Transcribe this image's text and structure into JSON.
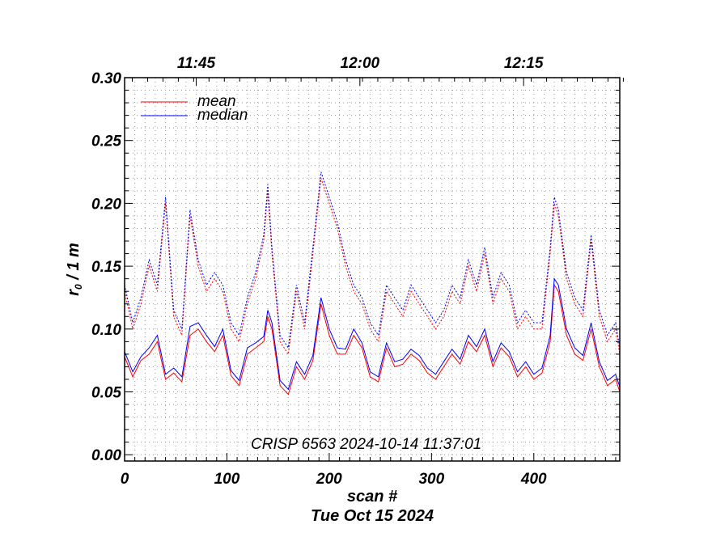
{
  "chart_data": {
    "type": "line",
    "title": "",
    "xlabel": "scan #",
    "ylabel_main": "r",
    "ylabel_sub": "0",
    "ylabel_rest": " / 1 m",
    "date_label": "Tue Oct 15 2024",
    "annotation": "CRISP 6563 2024-10-14 11:37:01",
    "xlim": [
      0,
      484
    ],
    "ylim": [
      -0.005,
      0.3
    ],
    "x_ticks": [
      0,
      100,
      200,
      300,
      400
    ],
    "x_tick_labels": [
      "0",
      "100",
      "200",
      "300",
      "400"
    ],
    "y_ticks": [
      0.0,
      0.05,
      0.1,
      0.15,
      0.2,
      0.25,
      0.3
    ],
    "y_tick_labels": [
      "0.00",
      "0.05",
      "0.10",
      "0.15",
      "0.20",
      "0.25",
      "0.30"
    ],
    "top_ticks": [
      {
        "x": 70,
        "label": "11:45"
      },
      {
        "x": 230,
        "label": "12:00"
      },
      {
        "x": 390,
        "label": "12:15"
      }
    ],
    "grid": true,
    "legend_position": "top-left",
    "colors": {
      "mean": "#ff0000",
      "median": "#0000ff",
      "grid": "#999999"
    },
    "series": [
      {
        "name": "mean",
        "color": "#ff0000",
        "x": [
          0,
          8,
          16,
          24,
          32,
          40,
          48,
          56,
          64,
          72,
          80,
          88,
          96,
          104,
          112,
          120,
          128,
          136,
          140,
          144,
          152,
          160,
          168,
          176,
          184,
          192,
          200,
          208,
          216,
          224,
          232,
          240,
          248,
          256,
          264,
          272,
          280,
          288,
          296,
          304,
          312,
          320,
          328,
          336,
          344,
          352,
          360,
          368,
          376,
          384,
          392,
          400,
          408,
          416,
          420,
          424,
          432,
          440,
          448,
          456,
          464,
          472,
          480,
          484
        ],
        "values": [
          0.078,
          0.062,
          0.075,
          0.08,
          0.09,
          0.06,
          0.065,
          0.058,
          0.095,
          0.1,
          0.09,
          0.082,
          0.095,
          0.063,
          0.055,
          0.08,
          0.085,
          0.09,
          0.11,
          0.1,
          0.055,
          0.048,
          0.07,
          0.06,
          0.075,
          0.12,
          0.095,
          0.08,
          0.08,
          0.095,
          0.085,
          0.062,
          0.058,
          0.085,
          0.07,
          0.072,
          0.08,
          0.075,
          0.065,
          0.06,
          0.07,
          0.08,
          0.072,
          0.09,
          0.082,
          0.095,
          0.07,
          0.085,
          0.078,
          0.062,
          0.07,
          0.06,
          0.065,
          0.09,
          0.135,
          0.13,
          0.095,
          0.08,
          0.075,
          0.1,
          0.07,
          0.055,
          0.06,
          0.05
        ],
        "upper_values": [
          0.13,
          0.1,
          0.12,
          0.15,
          0.13,
          0.2,
          0.11,
          0.095,
          0.19,
          0.15,
          0.13,
          0.14,
          0.13,
          0.1,
          0.09,
          0.12,
          0.14,
          0.17,
          0.21,
          0.16,
          0.09,
          0.08,
          0.13,
          0.1,
          0.16,
          0.22,
          0.2,
          0.18,
          0.15,
          0.13,
          0.12,
          0.1,
          0.09,
          0.13,
          0.12,
          0.11,
          0.13,
          0.12,
          0.11,
          0.1,
          0.11,
          0.13,
          0.12,
          0.15,
          0.13,
          0.16,
          0.12,
          0.14,
          0.13,
          0.1,
          0.11,
          0.1,
          0.1,
          0.16,
          0.2,
          0.19,
          0.14,
          0.12,
          0.11,
          0.17,
          0.11,
          0.09,
          0.1,
          0.08
        ]
      },
      {
        "name": "median",
        "color": "#0000ff",
        "x": [
          0,
          8,
          16,
          24,
          32,
          40,
          48,
          56,
          64,
          72,
          80,
          88,
          96,
          104,
          112,
          120,
          128,
          136,
          140,
          144,
          152,
          160,
          168,
          176,
          184,
          192,
          200,
          208,
          216,
          224,
          232,
          240,
          248,
          256,
          264,
          272,
          280,
          288,
          296,
          304,
          312,
          320,
          328,
          336,
          344,
          352,
          360,
          368,
          376,
          384,
          392,
          400,
          408,
          416,
          420,
          424,
          432,
          440,
          448,
          456,
          464,
          472,
          480,
          484
        ],
        "values": [
          0.082,
          0.066,
          0.078,
          0.085,
          0.095,
          0.064,
          0.069,
          0.062,
          0.102,
          0.105,
          0.095,
          0.086,
          0.1,
          0.067,
          0.059,
          0.085,
          0.089,
          0.094,
          0.115,
          0.105,
          0.059,
          0.052,
          0.074,
          0.064,
          0.079,
          0.125,
          0.1,
          0.085,
          0.084,
          0.1,
          0.089,
          0.066,
          0.062,
          0.089,
          0.074,
          0.076,
          0.084,
          0.079,
          0.069,
          0.064,
          0.074,
          0.084,
          0.076,
          0.095,
          0.086,
          0.1,
          0.074,
          0.089,
          0.082,
          0.066,
          0.074,
          0.064,
          0.069,
          0.095,
          0.14,
          0.135,
          0.1,
          0.085,
          0.079,
          0.105,
          0.074,
          0.059,
          0.064,
          0.054
        ],
        "upper_values": [
          0.135,
          0.105,
          0.125,
          0.155,
          0.135,
          0.205,
          0.115,
          0.1,
          0.195,
          0.155,
          0.135,
          0.145,
          0.135,
          0.105,
          0.095,
          0.125,
          0.145,
          0.175,
          0.215,
          0.165,
          0.095,
          0.085,
          0.135,
          0.105,
          0.165,
          0.225,
          0.205,
          0.185,
          0.155,
          0.135,
          0.125,
          0.105,
          0.095,
          0.135,
          0.125,
          0.115,
          0.135,
          0.125,
          0.115,
          0.105,
          0.115,
          0.135,
          0.125,
          0.155,
          0.135,
          0.165,
          0.125,
          0.145,
          0.135,
          0.105,
          0.115,
          0.105,
          0.105,
          0.165,
          0.205,
          0.195,
          0.145,
          0.125,
          0.115,
          0.175,
          0.115,
          0.095,
          0.105,
          0.085
        ]
      }
    ]
  }
}
